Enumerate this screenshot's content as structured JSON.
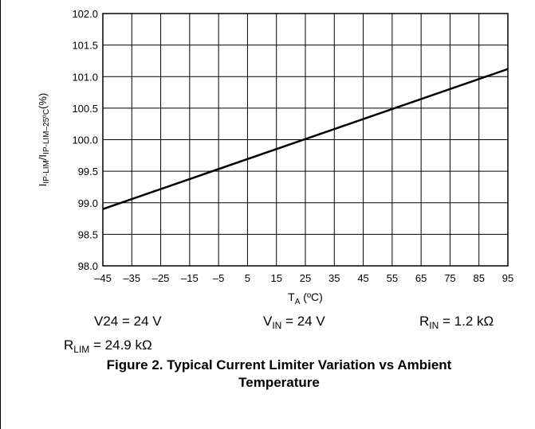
{
  "chart_data": {
    "type": "line",
    "x": [
      -45,
      95
    ],
    "series": [
      {
        "values": [
          98.9,
          101.12
        ]
      }
    ],
    "xticks": [
      "–45",
      "–35",
      "–25",
      "–15",
      "–5",
      "5",
      "15",
      "25",
      "35",
      "45",
      "55",
      "65",
      "75",
      "85",
      "95"
    ],
    "yticks": [
      "98.0",
      "98.5",
      "99.0",
      "99.5",
      "100.0",
      "100.5",
      "101.0",
      "101.5",
      "102.0"
    ],
    "xlim": [
      -45,
      95
    ],
    "ylim": [
      98.0,
      102.0
    ],
    "grid": true,
    "xlabel": {
      "main": "T",
      "sub": "A",
      "unit": " (ºC)"
    },
    "ylabel": {
      "main": "I",
      "sub1": "IP-LIM",
      "sep": "/I",
      "sub2": "IP-LIM–25ºC",
      "unit": "(%)"
    }
  },
  "conditions": [
    {
      "main": "V24",
      "sub": "",
      "rest": " = 24 V"
    },
    {
      "main": "V",
      "sub": "IN",
      "rest": " = 24 V"
    },
    {
      "main": "R",
      "sub": "IN",
      "rest": " = 1.2 kΩ"
    },
    {
      "main": "R",
      "sub": "LIM",
      "rest": " = 24.9 kΩ"
    }
  ],
  "caption": {
    "line1": "Figure 2. Typical Current Limiter Variation vs Ambient",
    "line2": "Temperature"
  }
}
